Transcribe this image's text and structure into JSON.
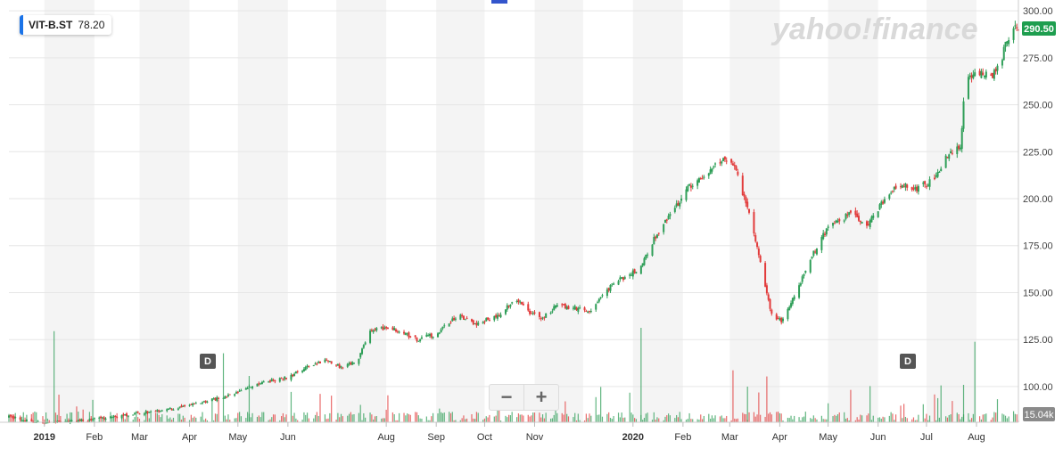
{
  "ticker": {
    "symbol": "VIT-B.ST",
    "value": "78.20",
    "accent": "#1a73e8"
  },
  "watermark": "yahoo!finance",
  "current_price_label": "290.50",
  "volume_label": "15.04k",
  "zoom": {
    "out_icon": "minus-icon",
    "out_label": "−",
    "in_icon": "plus-icon",
    "in_label": "+"
  },
  "events": [
    {
      "label": "D",
      "date": "2019-04-18"
    },
    {
      "label": "D",
      "date": "2020-07-08"
    }
  ],
  "colors": {
    "up": "#2e9e57",
    "down": "#e23b3b",
    "current_price_bg": "#1e9e4f",
    "volume_label_bg": "#8a8a8a"
  },
  "chart_data": {
    "type": "candlestick",
    "title": "",
    "x_range": [
      "2018-12-10",
      "2020-08-27"
    ],
    "y_axis": {
      "position": "right",
      "ylim": [
        81,
        301
      ],
      "ticks": [
        100,
        125,
        150,
        175,
        200,
        225,
        250,
        275,
        300
      ],
      "tick_labels": [
        "100.00",
        "125.00",
        "150.00",
        "175.00",
        "200.00",
        "225.00",
        "250.00",
        "275.00",
        "300.00"
      ]
    },
    "x_axis": {
      "labels": [
        {
          "date": "2019-01-01",
          "label": "2019",
          "bold": true
        },
        {
          "date": "2019-02-01",
          "label": "Feb"
        },
        {
          "date": "2019-03-01",
          "label": "Mar"
        },
        {
          "date": "2019-04-01",
          "label": "Apr"
        },
        {
          "date": "2019-05-01",
          "label": "May"
        },
        {
          "date": "2019-06-01",
          "label": "Jun"
        },
        {
          "date": "2019-08-01",
          "label": "Aug"
        },
        {
          "date": "2019-09-01",
          "label": "Sep"
        },
        {
          "date": "2019-10-01",
          "label": "Oct"
        },
        {
          "date": "2019-11-01",
          "label": "Nov"
        },
        {
          "date": "2020-01-01",
          "label": "2020",
          "bold": true
        },
        {
          "date": "2020-02-01",
          "label": "Feb"
        },
        {
          "date": "2020-03-01",
          "label": "Mar"
        },
        {
          "date": "2020-04-01",
          "label": "Apr"
        },
        {
          "date": "2020-05-01",
          "label": "May"
        },
        {
          "date": "2020-06-01",
          "label": "Jun"
        },
        {
          "date": "2020-07-01",
          "label": "Jul"
        },
        {
          "date": "2020-08-01",
          "label": "Aug"
        }
      ],
      "shaded_months": [
        "2019-01",
        "2019-03",
        "2019-05",
        "2019-07",
        "2019-09",
        "2019-11",
        "2020-01",
        "2020-03",
        "2020-05",
        "2020-07"
      ]
    },
    "price_path": [
      [
        "2018-12-10",
        84
      ],
      [
        "2018-12-20",
        82
      ],
      [
        "2019-01-01",
        80.5
      ],
      [
        "2019-01-15",
        81.5
      ],
      [
        "2019-02-01",
        82.5
      ],
      [
        "2019-02-15",
        84
      ],
      [
        "2019-03-01",
        86
      ],
      [
        "2019-03-20",
        88
      ],
      [
        "2019-04-01",
        90
      ],
      [
        "2019-04-20",
        94
      ],
      [
        "2019-05-01",
        97
      ],
      [
        "2019-05-15",
        102
      ],
      [
        "2019-06-01",
        105
      ],
      [
        "2019-06-15",
        111
      ],
      [
        "2019-06-25",
        114
      ],
      [
        "2019-07-05",
        110
      ],
      [
        "2019-07-15",
        115
      ],
      [
        "2019-07-22",
        130
      ],
      [
        "2019-08-05",
        131
      ],
      [
        "2019-08-20",
        125
      ],
      [
        "2019-09-01",
        128
      ],
      [
        "2019-09-15",
        138
      ],
      [
        "2019-09-25",
        133
      ],
      [
        "2019-10-10",
        138
      ],
      [
        "2019-10-20",
        147
      ],
      [
        "2019-10-28",
        140
      ],
      [
        "2019-11-05",
        136
      ],
      [
        "2019-11-15",
        143
      ],
      [
        "2019-11-25",
        142
      ],
      [
        "2019-12-05",
        140
      ],
      [
        "2019-12-20",
        155
      ],
      [
        "2020-01-05",
        163
      ],
      [
        "2020-01-15",
        180
      ],
      [
        "2020-01-25",
        192
      ],
      [
        "2020-02-05",
        207
      ],
      [
        "2020-02-15",
        212
      ],
      [
        "2020-02-22",
        220
      ],
      [
        "2020-03-01",
        222
      ],
      [
        "2020-03-05",
        215
      ],
      [
        "2020-03-10",
        200
      ],
      [
        "2020-03-15",
        185
      ],
      [
        "2020-03-20",
        165
      ],
      [
        "2020-03-27",
        138
      ],
      [
        "2020-04-02",
        135
      ],
      [
        "2020-04-10",
        148
      ],
      [
        "2020-04-20",
        168
      ],
      [
        "2020-05-01",
        185
      ],
      [
        "2020-05-15",
        192
      ],
      [
        "2020-05-25",
        185
      ],
      [
        "2020-06-05",
        200
      ],
      [
        "2020-06-15",
        208
      ],
      [
        "2020-06-25",
        205
      ],
      [
        "2020-07-05",
        210
      ],
      [
        "2020-07-15",
        225
      ],
      [
        "2020-07-22",
        228
      ],
      [
        "2020-07-25",
        262
      ],
      [
        "2020-08-01",
        268
      ],
      [
        "2020-08-10",
        265
      ],
      [
        "2020-08-15",
        270
      ],
      [
        "2020-08-19",
        282
      ],
      [
        "2020-08-22",
        287
      ],
      [
        "2020-08-25",
        292
      ],
      [
        "2020-08-27",
        290.5
      ]
    ],
    "current_price": 290.5,
    "volume_max": "15.04k"
  }
}
